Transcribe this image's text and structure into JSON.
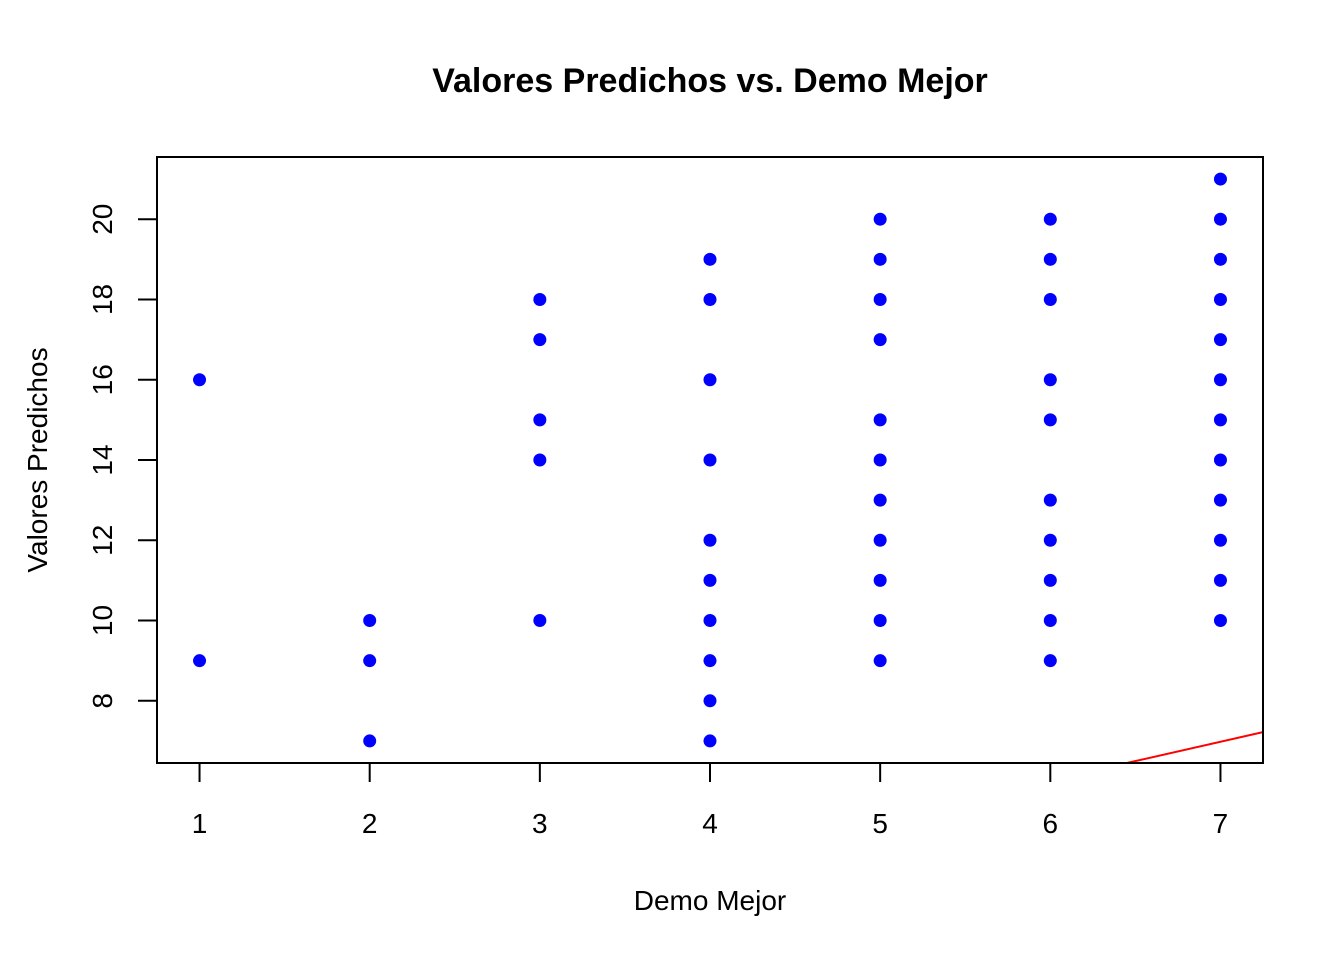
{
  "chart_data": {
    "type": "scatter",
    "title": "Valores Predichos vs. Demo Mejor",
    "xlabel": "Demo Mejor",
    "ylabel": "Valores Predichos",
    "xlim": [
      0.75,
      7.25
    ],
    "ylim": [
      6.45,
      21.55
    ],
    "xticks": [
      1,
      2,
      3,
      4,
      5,
      6,
      7
    ],
    "yticks": [
      8,
      10,
      12,
      14,
      16,
      18,
      20
    ],
    "grid": false,
    "point_color": "#0000FF",
    "line_color": "#FF0000",
    "points": [
      [
        1,
        16
      ],
      [
        1,
        9
      ],
      [
        2,
        10
      ],
      [
        2,
        9
      ],
      [
        2,
        7
      ],
      [
        3,
        18
      ],
      [
        3,
        17
      ],
      [
        3,
        15
      ],
      [
        3,
        14
      ],
      [
        3,
        10
      ],
      [
        4,
        19
      ],
      [
        4,
        18
      ],
      [
        4,
        16
      ],
      [
        4,
        14
      ],
      [
        4,
        12
      ],
      [
        4,
        11
      ],
      [
        4,
        10
      ],
      [
        4,
        9
      ],
      [
        4,
        8
      ],
      [
        4,
        7
      ],
      [
        5,
        20
      ],
      [
        5,
        19
      ],
      [
        5,
        18
      ],
      [
        5,
        17
      ],
      [
        5,
        15
      ],
      [
        5,
        14
      ],
      [
        5,
        13
      ],
      [
        5,
        12
      ],
      [
        5,
        11
      ],
      [
        5,
        10
      ],
      [
        5,
        9
      ],
      [
        6,
        20
      ],
      [
        6,
        19
      ],
      [
        6,
        18
      ],
      [
        6,
        16
      ],
      [
        6,
        15
      ],
      [
        6,
        13
      ],
      [
        6,
        12
      ],
      [
        6,
        11
      ],
      [
        6,
        10
      ],
      [
        6,
        9
      ],
      [
        7,
        21
      ],
      [
        7,
        20
      ],
      [
        7,
        19
      ],
      [
        7,
        18
      ],
      [
        7,
        17
      ],
      [
        7,
        16
      ],
      [
        7,
        15
      ],
      [
        7,
        14
      ],
      [
        7,
        13
      ],
      [
        7,
        12
      ],
      [
        7,
        11
      ],
      [
        7,
        10
      ]
    ],
    "reference_line": {
      "x": [
        6.45,
        7.25
      ],
      "y": [
        6.45,
        7.22
      ]
    }
  }
}
